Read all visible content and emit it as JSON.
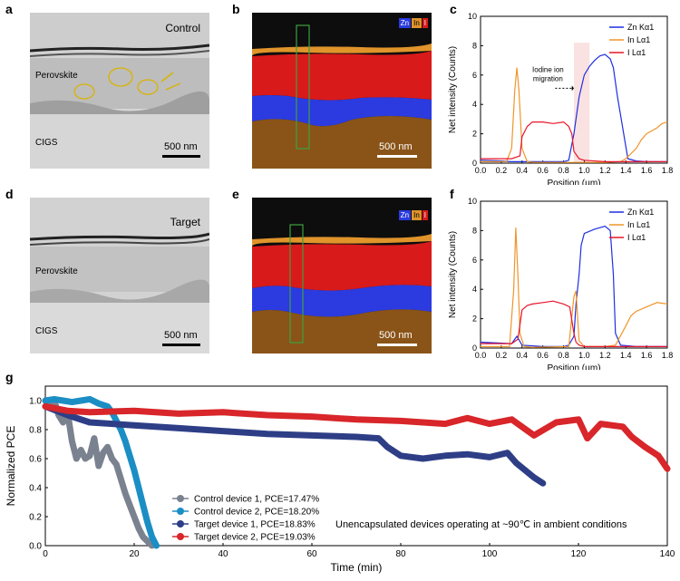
{
  "panels": {
    "a": {
      "label": "a",
      "title": "Control",
      "layer1": "Perovskite",
      "layer2": "CIGS",
      "scale": "500 nm"
    },
    "b": {
      "label": "b",
      "scale": "500 nm",
      "legend": [
        "Zn",
        "In",
        "I"
      ]
    },
    "c": {
      "label": "c",
      "annotation": "Iodine ion migration"
    },
    "d": {
      "label": "d",
      "title": "Target",
      "layer1": "Perovskite",
      "layer2": "CIGS",
      "scale": "500 nm"
    },
    "e": {
      "label": "e",
      "scale": "500 nm",
      "legend": [
        "Zn",
        "In",
        "I"
      ]
    },
    "f": {
      "label": "f"
    },
    "g": {
      "label": "g",
      "annotation": "Unencapsulated devices operating at ~90℃ in ambient conditions"
    }
  },
  "colors": {
    "zn": "#1f2fe0",
    "in": "#f0952a",
    "i": "#e8142a",
    "c1": "#7a8290",
    "c2": "#1b8ec4",
    "t1": "#2e3e86",
    "t2": "#d8262a"
  },
  "chart_data": [
    {
      "type": "line",
      "panel": "c",
      "xlabel": "Position (μm)",
      "ylabel": "Net intensity (Counts)",
      "xlim": [
        0,
        1.8
      ],
      "ylim": [
        0,
        10
      ],
      "xticks": [
        "0.0",
        "0.2",
        "0.4",
        "0.6",
        "0.8",
        "1.0",
        "1.2",
        "1.4",
        "1.6",
        "1.8"
      ],
      "yticks": [
        "0",
        "2",
        "4",
        "6",
        "8",
        "10"
      ],
      "legend_position": "top-right",
      "highlight_band": [
        0.9,
        1.05
      ],
      "series": [
        {
          "name": "Zn Kα1",
          "color": "#1f2fe0",
          "x": [
            0,
            0.2,
            0.3,
            0.4,
            0.5,
            0.6,
            0.7,
            0.8,
            0.85,
            0.9,
            0.95,
            1.0,
            1.05,
            1.1,
            1.15,
            1.2,
            1.25,
            1.28,
            1.32,
            1.38,
            1.42,
            1.5,
            1.6,
            1.7,
            1.8
          ],
          "y": [
            0.2,
            0.15,
            0.1,
            0.1,
            0.1,
            0.1,
            0.1,
            0.1,
            0.2,
            2.0,
            4.5,
            6.0,
            6.6,
            7.0,
            7.3,
            7.4,
            7.1,
            6.5,
            4.5,
            2.0,
            0.3,
            0.15,
            0.1,
            0.1,
            0.1
          ]
        },
        {
          "name": "In Lα1",
          "color": "#f0952a",
          "x": [
            0,
            0.25,
            0.3,
            0.33,
            0.35,
            0.37,
            0.4,
            0.45,
            0.5,
            0.8,
            1.0,
            1.2,
            1.35,
            1.4,
            1.5,
            1.55,
            1.6,
            1.65,
            1.7,
            1.75,
            1.8
          ],
          "y": [
            0.1,
            0.1,
            1.0,
            5.0,
            6.5,
            5.0,
            1.0,
            0.1,
            0.05,
            0.05,
            0.05,
            0.05,
            0.1,
            0.3,
            1.0,
            1.6,
            2.0,
            2.2,
            2.4,
            2.7,
            2.8
          ]
        },
        {
          "name": "I Lα1",
          "color": "#e8142a",
          "x": [
            0,
            0.3,
            0.38,
            0.4,
            0.45,
            0.5,
            0.6,
            0.7,
            0.8,
            0.85,
            0.88,
            0.9,
            0.95,
            1.0,
            1.2,
            1.4,
            1.6,
            1.8
          ],
          "y": [
            0.3,
            0.3,
            0.5,
            1.8,
            2.5,
            2.8,
            2.8,
            2.7,
            2.8,
            2.5,
            2.0,
            0.8,
            0.3,
            0.2,
            0.1,
            0.1,
            0.1,
            0.1
          ]
        }
      ]
    },
    {
      "type": "line",
      "panel": "f",
      "xlabel": "Position (μm)",
      "ylabel": "Net intensity (Counts)",
      "xlim": [
        0,
        1.8
      ],
      "ylim": [
        0,
        10
      ],
      "xticks": [
        "0.0",
        "0.2",
        "0.4",
        "0.6",
        "0.8",
        "1.0",
        "1.2",
        "1.4",
        "1.6",
        "1.8"
      ],
      "yticks": [
        "0",
        "2",
        "4",
        "6",
        "8",
        "10"
      ],
      "legend_position": "top-right",
      "series": [
        {
          "name": "Zn Kα1",
          "color": "#1f2fe0",
          "x": [
            0,
            0.3,
            0.35,
            0.4,
            0.6,
            0.8,
            0.85,
            0.9,
            0.92,
            0.95,
            0.97,
            1.0,
            1.1,
            1.2,
            1.25,
            1.28,
            1.3,
            1.35,
            1.5,
            1.8
          ],
          "y": [
            0.4,
            0.3,
            0.8,
            0.2,
            0.1,
            0.1,
            0.2,
            0.8,
            3.0,
            5.0,
            7.0,
            7.8,
            8.1,
            8.3,
            8.0,
            5.0,
            1.0,
            0.2,
            0.1,
            0.1
          ]
        },
        {
          "name": "In Lα1",
          "color": "#f0952a",
          "x": [
            0,
            0.28,
            0.32,
            0.34,
            0.36,
            0.38,
            0.42,
            0.5,
            0.85,
            0.9,
            0.92,
            0.95,
            1.0,
            1.2,
            1.3,
            1.4,
            1.45,
            1.5,
            1.6,
            1.7,
            1.8
          ],
          "y": [
            0.1,
            0.1,
            4.0,
            8.2,
            5.0,
            1.0,
            0.1,
            0.05,
            0.1,
            3.5,
            3.9,
            0.5,
            0.1,
            0.1,
            0.2,
            1.5,
            2.2,
            2.5,
            2.8,
            3.1,
            3.0
          ]
        },
        {
          "name": "I Lα1",
          "color": "#e8142a",
          "x": [
            0,
            0.3,
            0.36,
            0.4,
            0.45,
            0.5,
            0.6,
            0.7,
            0.8,
            0.86,
            0.9,
            0.92,
            0.95,
            1.0,
            1.2,
            1.4,
            1.6,
            1.8
          ],
          "y": [
            0.3,
            0.3,
            0.6,
            2.6,
            2.9,
            3.0,
            3.1,
            3.2,
            3.0,
            2.8,
            1.0,
            0.4,
            0.2,
            0.1,
            0.1,
            0.1,
            0.1,
            0.1
          ]
        }
      ]
    },
    {
      "type": "line",
      "panel": "g",
      "xlabel": "Time (min)",
      "ylabel": "Normalized PCE",
      "xlim": [
        0,
        140
      ],
      "ylim": [
        0,
        1.1
      ],
      "xticks": [
        "0",
        "20",
        "40",
        "60",
        "80",
        "100",
        "120",
        "140"
      ],
      "yticks": [
        "0.0",
        "0.2",
        "0.4",
        "0.6",
        "0.8",
        "1.0"
      ],
      "legend_position": "bottom-left",
      "series": [
        {
          "name": "Control device 1, PCE=17.47%",
          "color": "#7a8290",
          "x": [
            0,
            1,
            2,
            3,
            4,
            5,
            6,
            7,
            8,
            9,
            10,
            11,
            12,
            13,
            14,
            15,
            16,
            17,
            18,
            19,
            20,
            21,
            22,
            23,
            24
          ],
          "y": [
            1.0,
            0.98,
            1.0,
            0.9,
            0.85,
            0.92,
            0.72,
            0.6,
            0.66,
            0.6,
            0.62,
            0.74,
            0.55,
            0.64,
            0.68,
            0.6,
            0.56,
            0.46,
            0.36,
            0.28,
            0.2,
            0.12,
            0.06,
            0.03,
            0.0
          ]
        },
        {
          "name": "Control device 2, PCE=18.20%",
          "color": "#1b8ec4",
          "x": [
            0,
            2,
            4,
            6,
            8,
            10,
            12,
            14,
            15,
            16,
            17,
            18,
            19,
            20,
            21,
            22,
            23,
            24,
            25
          ],
          "y": [
            1.0,
            1.01,
            1.0,
            0.99,
            1.0,
            1.01,
            0.98,
            0.96,
            0.92,
            0.86,
            0.8,
            0.72,
            0.62,
            0.52,
            0.4,
            0.28,
            0.16,
            0.06,
            0.0
          ]
        },
        {
          "name": "Target device 1, PCE=18.83%",
          "color": "#2e3e86",
          "x": [
            0,
            5,
            10,
            20,
            30,
            40,
            50,
            60,
            70,
            75,
            77,
            80,
            85,
            90,
            95,
            100,
            104,
            106,
            108,
            110,
            112
          ],
          "y": [
            0.96,
            0.9,
            0.85,
            0.83,
            0.81,
            0.79,
            0.77,
            0.76,
            0.75,
            0.74,
            0.68,
            0.62,
            0.6,
            0.62,
            0.63,
            0.61,
            0.64,
            0.57,
            0.52,
            0.47,
            0.43
          ]
        },
        {
          "name": "Target device 2, PCE=19.03%",
          "color": "#d8262a",
          "x": [
            0,
            5,
            10,
            20,
            30,
            40,
            50,
            60,
            70,
            80,
            90,
            95,
            100,
            105,
            110,
            115,
            120,
            122,
            125,
            130,
            132,
            135,
            138,
            140
          ],
          "y": [
            0.96,
            0.93,
            0.92,
            0.93,
            0.91,
            0.92,
            0.9,
            0.89,
            0.87,
            0.86,
            0.84,
            0.88,
            0.84,
            0.87,
            0.76,
            0.85,
            0.87,
            0.74,
            0.84,
            0.82,
            0.75,
            0.68,
            0.62,
            0.53
          ]
        }
      ]
    }
  ]
}
